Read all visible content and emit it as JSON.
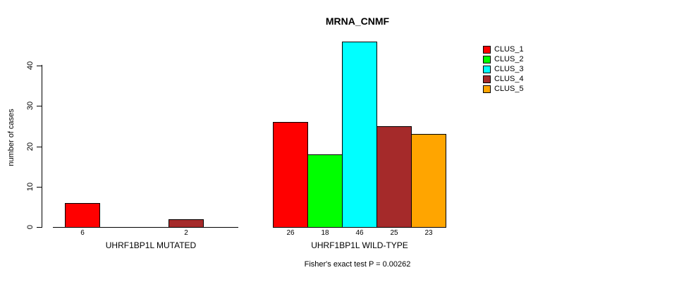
{
  "chart_data": {
    "type": "bar",
    "title": "MRNA_CNMF",
    "ylabel": "number of cases",
    "xlabel": "",
    "ylim": [
      0,
      46
    ],
    "yticks": [
      0,
      10,
      20,
      30,
      40
    ],
    "grid": false,
    "legend_position": "top-right",
    "series": [
      {
        "name": "CLUS_1",
        "color": "#FF0000"
      },
      {
        "name": "CLUS_2",
        "color": "#00FF00"
      },
      {
        "name": "CLUS_3",
        "color": "#00FFFF"
      },
      {
        "name": "CLUS_4",
        "color": "#A52A2A"
      },
      {
        "name": "CLUS_5",
        "color": "#FFA500"
      }
    ],
    "groups": [
      {
        "label": "UHRF1BP1L MUTATED",
        "values": [
          6,
          0,
          0,
          2,
          0
        ]
      },
      {
        "label": "UHRF1BP1L WILD-TYPE",
        "values": [
          26,
          18,
          46,
          25,
          23
        ]
      }
    ],
    "bar_value_labels_shown": true,
    "annotation": "Fisher's exact test P = 0.00262"
  },
  "colors": {
    "background": "#FFFFFF",
    "axis": "#000000",
    "text": "#000000"
  }
}
